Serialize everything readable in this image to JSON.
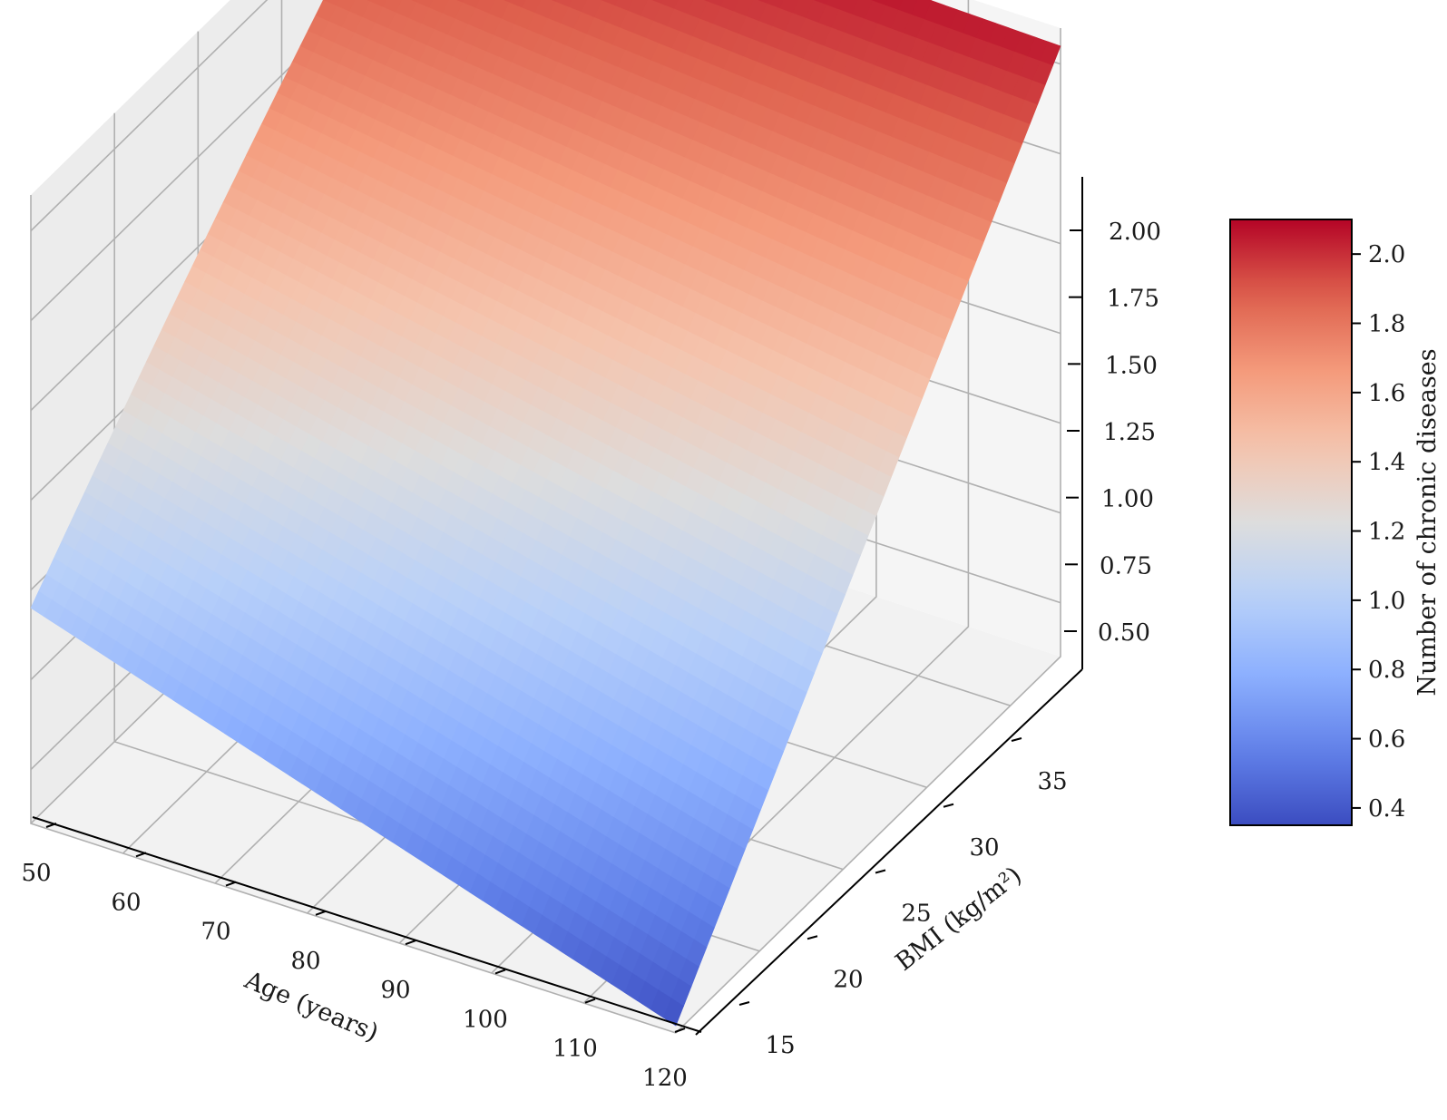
{
  "chart_data": {
    "type": "surface3d",
    "title": "",
    "xlabel": "Age (years)",
    "ylabel": "BMI (kg/m²)",
    "zlabel": "",
    "colorbar_label": "Number of chronic diseases",
    "colormap": "coolwarm",
    "x_range": [
      50,
      120
    ],
    "y_range": [
      15,
      38
    ],
    "z_range": [
      0.35,
      2.1
    ],
    "x_ticks": [
      "50",
      "60",
      "70",
      "80",
      "90",
      "100",
      "110",
      "120"
    ],
    "y_ticks": [
      "15",
      "20",
      "25",
      "30",
      "35"
    ],
    "z_ticks": [
      "0.50",
      "0.75",
      "1.00",
      "1.25",
      "1.50",
      "1.75",
      "2.00"
    ],
    "colorbar_ticks": [
      "0.4",
      "0.6",
      "0.8",
      "1.0",
      "1.2",
      "1.4",
      "1.6",
      "1.8",
      "2.0"
    ],
    "colorbar_range": [
      0.35,
      2.1
    ],
    "surface_corners": [
      {
        "age": 50,
        "bmi": 15,
        "value": 0.95
      },
      {
        "age": 120,
        "bmi": 15,
        "value": 0.37
      },
      {
        "age": 50,
        "bmi": 38,
        "value": 2.1
      },
      {
        "age": 120,
        "bmi": 38,
        "value": 2.05
      }
    ],
    "grid": true,
    "colors": {
      "low": "#3b4cc0",
      "mid": "#dddddd",
      "high": "#b40426",
      "pane": "#f2f2f2",
      "gridline": "#b0b0b0"
    }
  }
}
